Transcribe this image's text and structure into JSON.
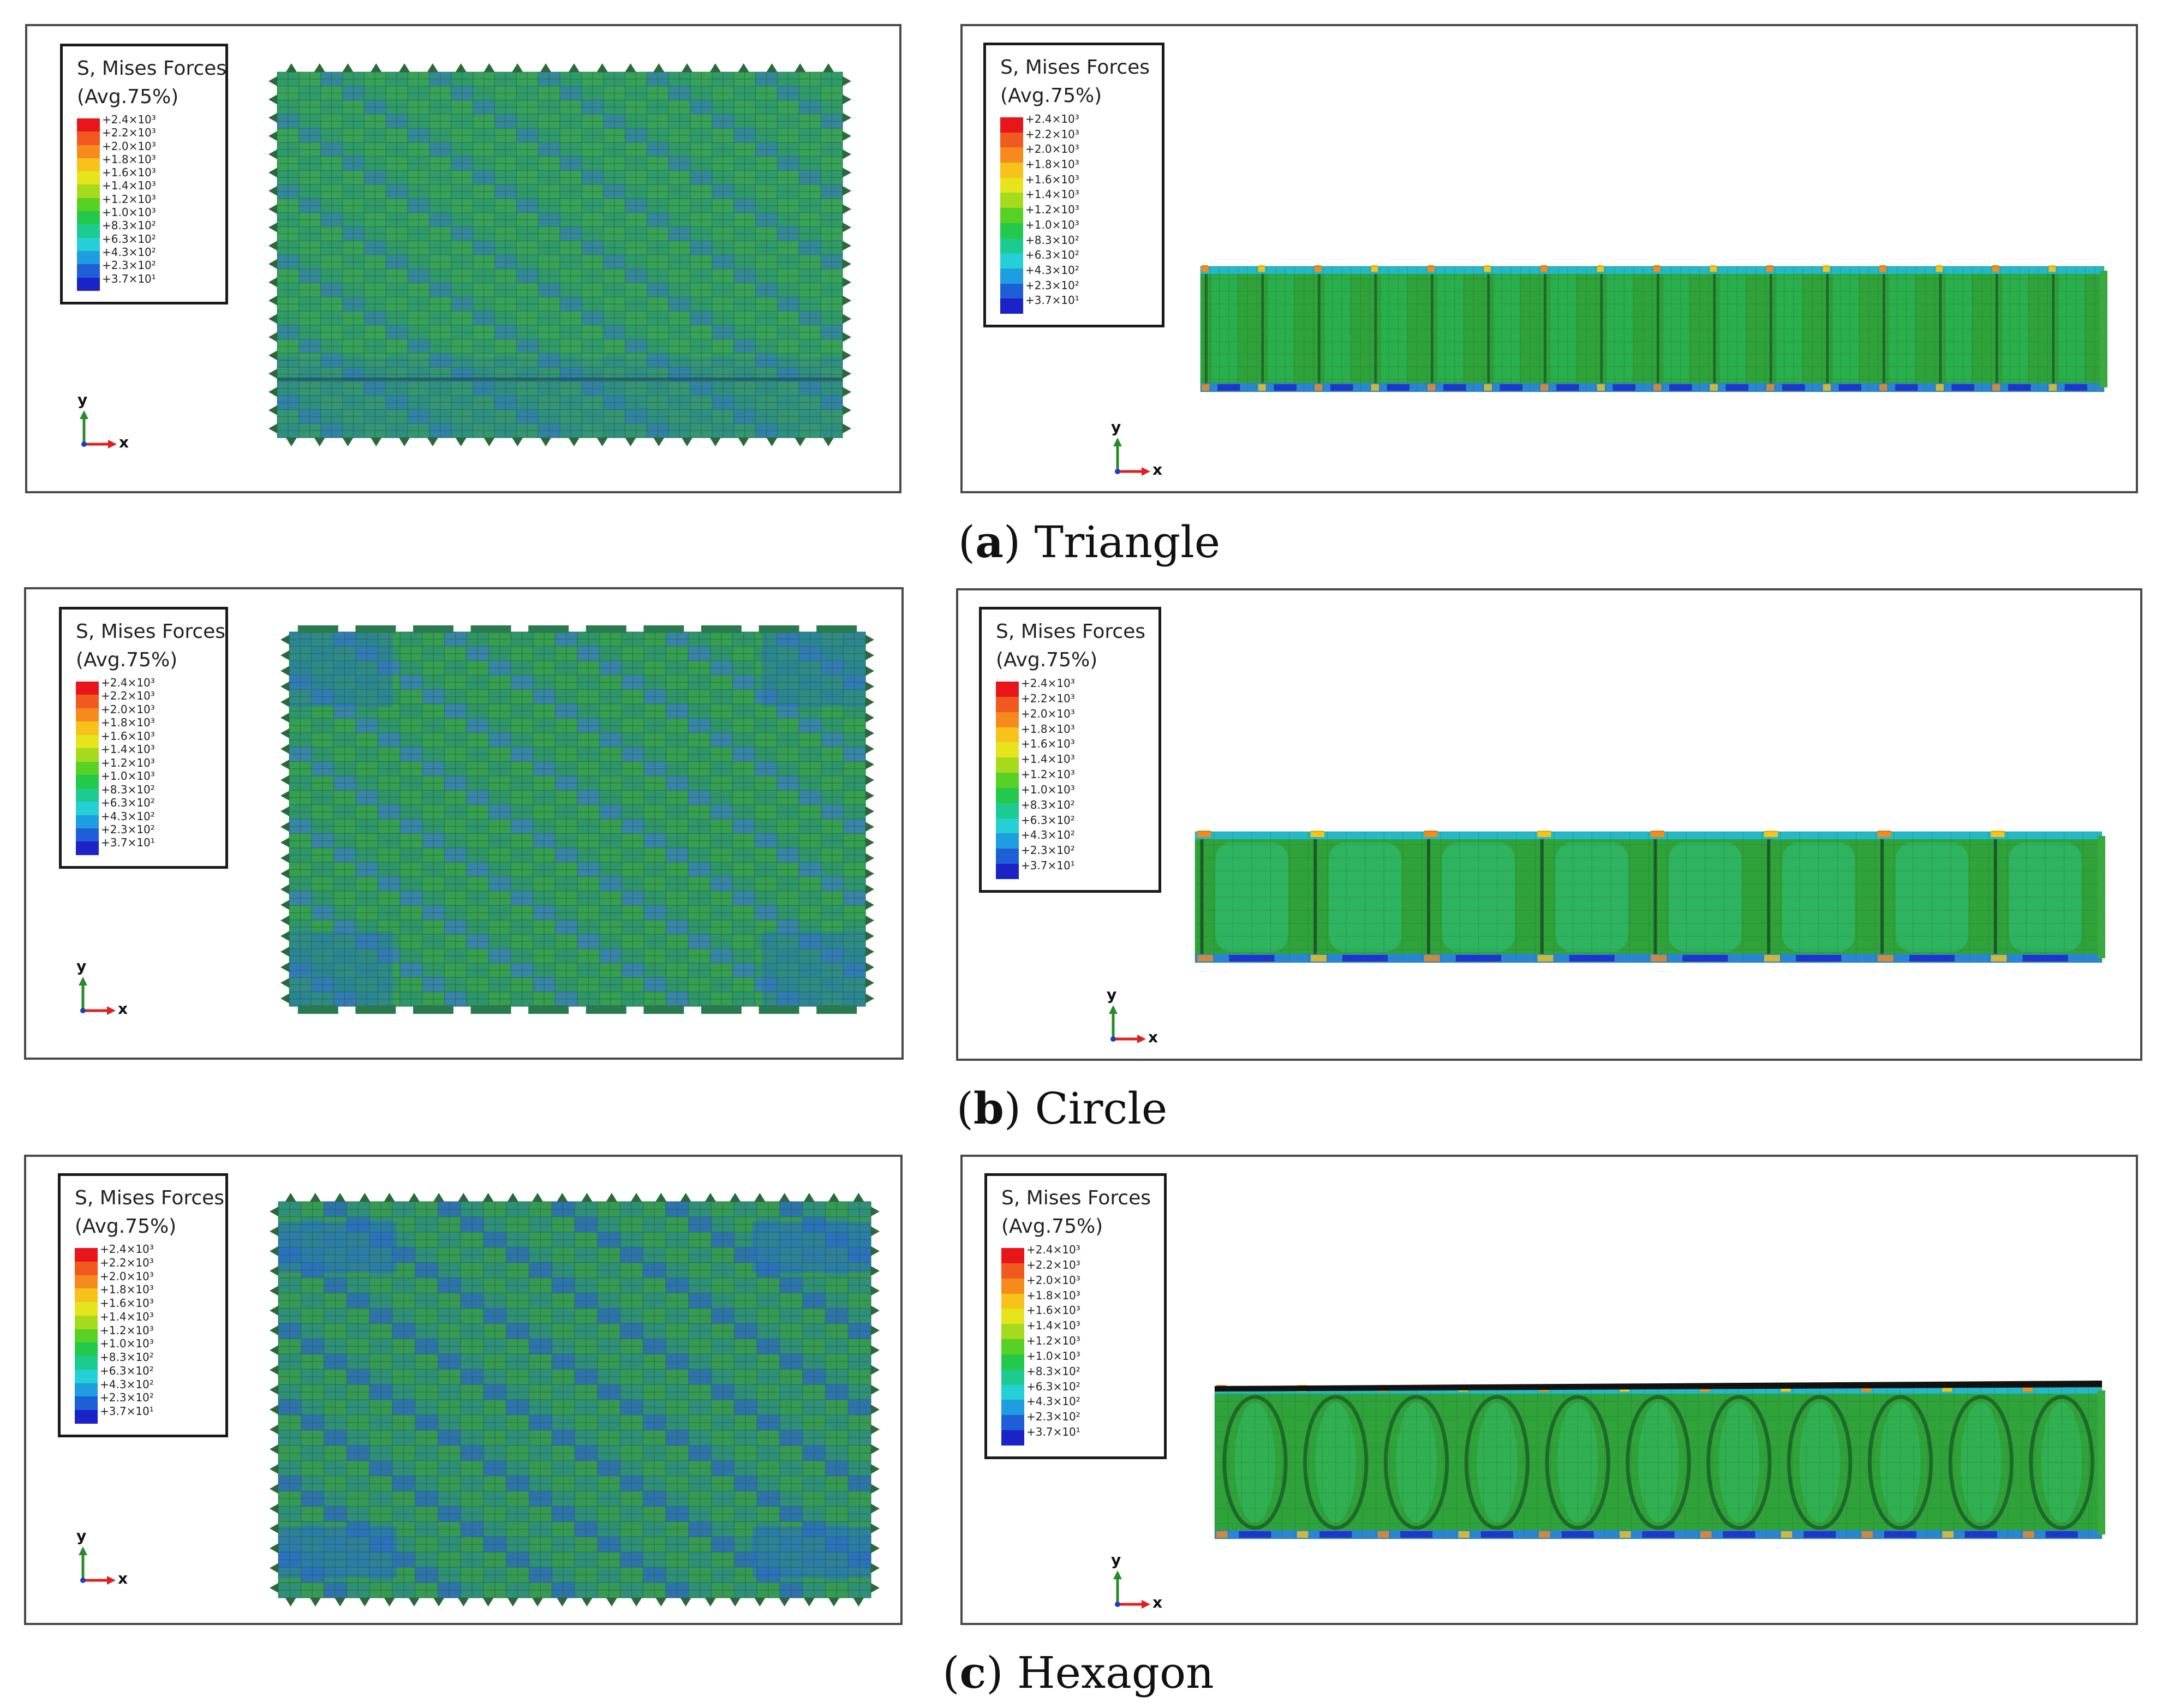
{
  "legend": {
    "title_line1": "S, Mises Forces",
    "title_line2": "(Avg.75%)",
    "entries": [
      "+2.4×10³",
      "+2.2×10³",
      "+2.0×10³",
      "+1.8×10³",
      "+1.6×10³",
      "+1.4×10³",
      "+1.2×10³",
      "+1.0×10³",
      "+8.3×10²",
      "+6.3×10²",
      "+4.3×10²",
      "+2.3×10²",
      "+3.7×10¹"
    ],
    "colors": [
      "#e8161a",
      "#f15a1e",
      "#f68a1d",
      "#f7c31a",
      "#e6e41a",
      "#a6db1d",
      "#56d124",
      "#22c94a",
      "#1ccb8f",
      "#24cfd6",
      "#1e9de0",
      "#1e5fd8",
      "#1b22c8"
    ]
  },
  "axes": {
    "y_label": "y",
    "x_label": "x"
  },
  "captions": [
    {
      "letter": "a",
      "name": "Triangle"
    },
    {
      "letter": "b",
      "name": "Circle"
    },
    {
      "letter": "c",
      "name": "Hexagon"
    }
  ],
  "colors": {
    "mesh_green": "#3a9a3c",
    "mesh_teal": "#3aa585",
    "mesh_blue": "#2a70c8",
    "mesh_lines": "#1f5e3a",
    "axis_y": "#2a8a2a",
    "axis_x": "#e02020"
  }
}
